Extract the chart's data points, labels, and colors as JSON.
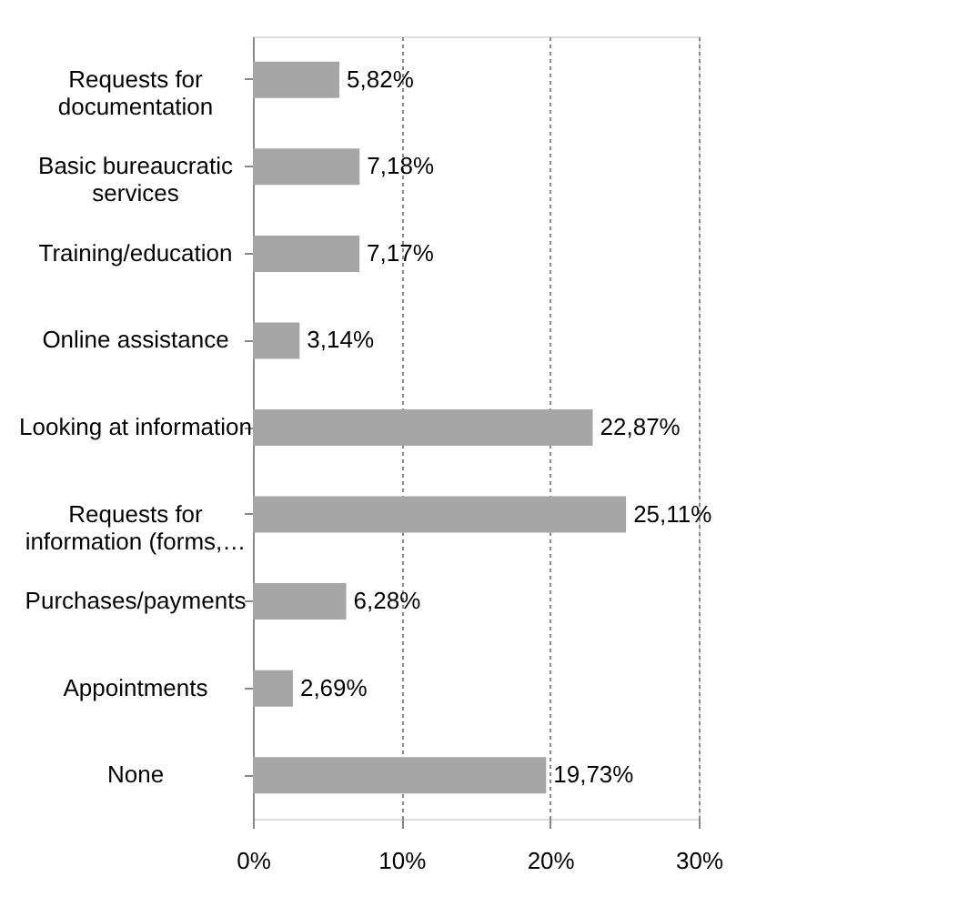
{
  "chart_data": {
    "type": "bar",
    "orientation": "horizontal",
    "categories": [
      "Requests for documentation",
      "Basic bureaucratic services",
      "Training/education",
      "Online assistance",
      "Looking at information",
      "Requests for information (forms,…",
      "Purchases/payments",
      "Appointments",
      "None"
    ],
    "values": [
      5.82,
      7.18,
      7.17,
      3.14,
      22.87,
      25.11,
      6.28,
      2.69,
      19.73
    ],
    "value_labels": [
      "5,82%",
      "7,18%",
      "7,17%",
      "3,14%",
      "22,87%",
      "25,11%",
      "6,28%",
      "2,69%",
      "19,73%"
    ],
    "color": "#a6a6a6",
    "xlim": [
      0,
      30
    ],
    "xticks": [
      {
        "value": 0,
        "label": "0%"
      },
      {
        "value": 10,
        "label": "10%"
      },
      {
        "value": 20,
        "label": "20%"
      },
      {
        "value": 30,
        "label": "30%"
      }
    ],
    "grid": "x"
  }
}
